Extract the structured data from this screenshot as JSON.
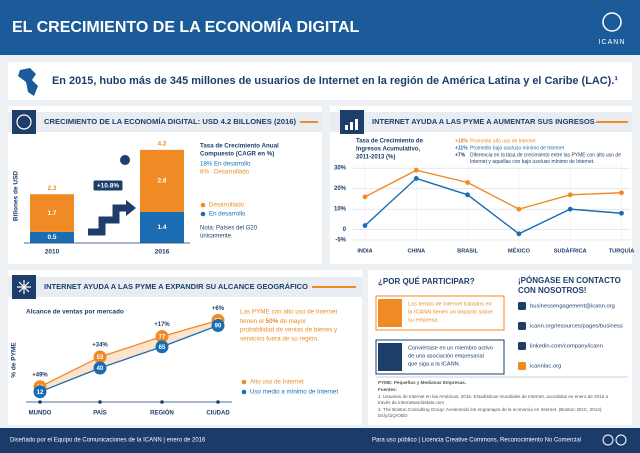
{
  "header": {
    "title": "EL CRECIMIENTO DE LA ECONOMÍA DIGITAL",
    "logo": "ICANN"
  },
  "banner": "En 2015, hubo más de 345 millones de usuarios de Internet en la región de América Latina y el Caribe (LAC).¹",
  "chart_data": [
    {
      "type": "stacked-bar",
      "title": "CRECIMIENTO DE LA ECONOMÍA DIGITAL: USD 4.2 BILLONES (2016)",
      "y_label": "Billones de USD",
      "categories": [
        "2010",
        "2016"
      ],
      "series": [
        {
          "name": "En desarrollo",
          "color": "#1b6db3",
          "values": [
            0.5,
            1.4
          ]
        },
        {
          "name": "Desarrollado",
          "color": "#f08a24",
          "values": [
            1.7,
            2.8
          ]
        }
      ],
      "totals": [
        2.3,
        4.2
      ],
      "growth_label": "+10.8%",
      "ylim": [
        0,
        4.6
      ],
      "cagr_title": [
        "Tasa de Crecimiento Anual",
        "Compuesto (CAGR en %)"
      ],
      "cagr": [
        {
          "rate": "18%",
          "name": "En desarrollo"
        },
        {
          "rate": "8%",
          "name": "Desarrollado"
        }
      ],
      "note": [
        "Nota: Países del G20",
        "únicamente."
      ]
    },
    {
      "type": "line",
      "title": "INTERNET AYUDA A LAS PYME A AUMENTAR SUS INGRESOS",
      "y_label": [
        "Tasa de Crecimiento de",
        "Ingresos Acumulativo,",
        "2011-2013 (%)"
      ],
      "categories": [
        "INDIA",
        "CHINA",
        "BRASIL",
        "MÉXICO",
        "SUDÁFRICA",
        "TURQUÍA"
      ],
      "series": [
        {
          "name": "Promedio alto uso de Internet",
          "label": "+18%",
          "color": "#f08a24",
          "values": [
            16,
            29,
            23,
            10,
            17,
            18
          ]
        },
        {
          "name": "Promedio bajo uso/uso mínimo de Internet",
          "label": "+11%",
          "color": "#1b6db3",
          "values": [
            2,
            25,
            17,
            -2,
            10,
            8
          ]
        }
      ],
      "difference": {
        "label": "+7%",
        "text": [
          "Diferencia en la tasa de crecimiento entre las PYME con alto uso de",
          "Internet y aquellas con bajo uso/uso mínimo de Internet."
        ]
      },
      "ylim": [
        -7,
        33
      ],
      "yticks": [
        {
          "value": 30,
          "label": "30%"
        },
        {
          "value": 20,
          "label": "20%"
        },
        {
          "value": 10,
          "label": "10%"
        },
        0,
        {
          "value": -5,
          "label": "-5%"
        }
      ],
      "grid": true
    },
    {
      "type": "range-line",
      "title": "INTERNET AYUDA A LAS PYME A EXPANDIR SU ALCANCE GEOGRÁFICO",
      "subtitle": "Alcance de ventas por mercado",
      "y_label": "% de PYME",
      "categories": [
        "MUNDO",
        "PAÍS",
        "REGIÓN",
        "CIUDAD"
      ],
      "series": [
        {
          "name": "Alto uso de Internet",
          "color": "#f08a24",
          "values": [
            18,
            53,
            77,
            96
          ]
        },
        {
          "name": "Uso medio a mínimo de Internet",
          "color": "#1b6db3",
          "values": [
            12,
            40,
            65,
            90
          ]
        }
      ],
      "gaps": [
        "+49%",
        "+34%",
        "+17%",
        "+6%"
      ],
      "ylim": [
        0,
        100
      ],
      "callout": [
        "Las PYME con alto uso de Internet",
        "tienen el",
        "50%",
        "de mayor",
        "probabilidad de ventas de bienes y",
        "servicios fuera de su región."
      ]
    }
  ],
  "participate": {
    "title": "¿POR QUÉ PARTICIPAR?",
    "items": [
      [
        "Los temas de Internet tratados en",
        "la ICANN tienen un impacto sobre",
        "su empresa."
      ],
      [
        "Conviértase en un miembro activo",
        "de una asociación empresarial",
        "que siga a la ICANN."
      ]
    ]
  },
  "contact": {
    "title": [
      "¡PÓNGASE EN CONTACTO",
      "CON NOSOTROS!"
    ],
    "items": [
      "businessengagement@icann.org",
      "icann.org/resources/pages/business",
      "linkedin.com/company/icann",
      "icannlac.org"
    ]
  },
  "notes": {
    "abbr": "PYME: Pequeñas y Medianas Empresas.",
    "sources_title": "Fuentes:",
    "sources": [
      "1. Usuarios de Internet en las Américas, 2015. Estadísticas mundiales de Internet, accedidas en enero de 2016 a",
      "través de internetworldstats.com",
      "2. The Boston Consulting Group: Acelerando los engranajes de la economía en Internet. (Boston: BGC, 2014).",
      "bit.ly/1iQrOBO"
    ]
  },
  "footer": {
    "left": "Diseñado por el Equipo de Comunicaciones de la ICANN | enero de 2016",
    "right": "Para uso público | Licencia Creative Commons, Reconocimiento No Comercial"
  }
}
